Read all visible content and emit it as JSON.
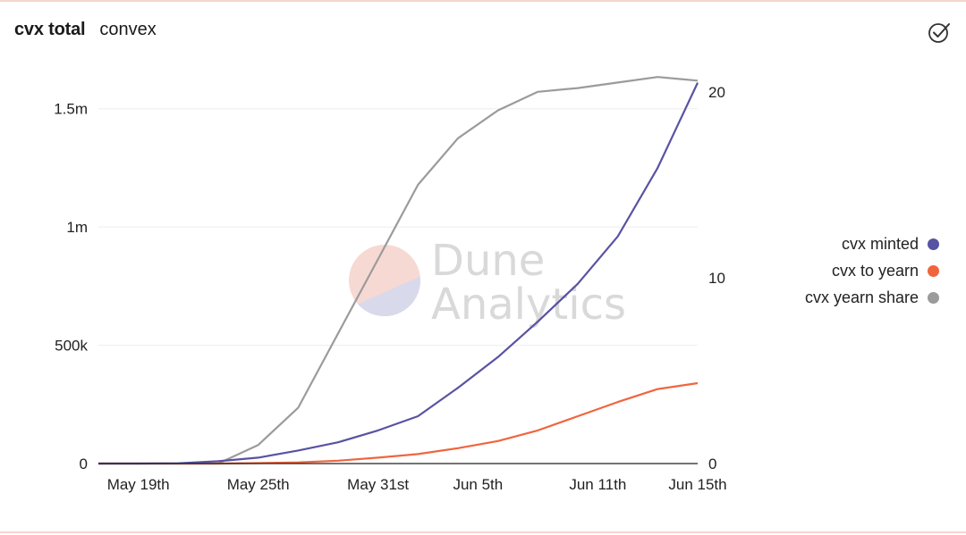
{
  "header": {
    "title": "cvx total",
    "subtitle": "convex"
  },
  "icons": {
    "check": "check-circle-icon"
  },
  "watermark": {
    "line1": "Dune",
    "line2": "Analytics"
  },
  "colors": {
    "minted": "#5853a2",
    "yearn": "#f0653e",
    "share": "#9b9b9b",
    "grid": "#eeeeee"
  },
  "chart_data": {
    "type": "line",
    "x": [
      "May 17",
      "May 19",
      "May 21",
      "May 23",
      "May 25",
      "May 27",
      "May 29",
      "May 31",
      "Jun 2",
      "Jun 4",
      "Jun 6",
      "Jun 8",
      "Jun 10",
      "Jun 12",
      "Jun 14",
      "Jun 15"
    ],
    "x_tick_labels": [
      "May 19th",
      "May 25th",
      "May 31st",
      "Jun 5th",
      "Jun 11th",
      "Jun 15th"
    ],
    "y_left_ticks": [
      {
        "value": 0,
        "label": "0"
      },
      {
        "value": 500000,
        "label": "500k"
      },
      {
        "value": 1000000,
        "label": "1m"
      },
      {
        "value": 1500000,
        "label": "1.5m"
      }
    ],
    "y_right_ticks": [
      {
        "value": 0,
        "label": "0"
      },
      {
        "value": 10,
        "label": "10"
      },
      {
        "value": 20,
        "label": "20"
      }
    ],
    "ylim_left": [
      0,
      1650000
    ],
    "ylim_right": [
      0,
      21
    ],
    "series": [
      {
        "name": "cvx minted",
        "axis": "left",
        "color": "#5853a2",
        "values": [
          0,
          0,
          1000,
          10000,
          25000,
          55000,
          90000,
          140000,
          200000,
          320000,
          450000,
          600000,
          760000,
          960000,
          1250000,
          1610000
        ]
      },
      {
        "name": "cvx to yearn",
        "axis": "left",
        "color": "#f0653e",
        "values": [
          0,
          0,
          0,
          0,
          2000,
          5000,
          12000,
          25000,
          40000,
          65000,
          95000,
          140000,
          200000,
          260000,
          315000,
          340000
        ]
      },
      {
        "name": "cvx yearn share",
        "axis": "right",
        "color": "#9b9b9b",
        "values": [
          0,
          0,
          0,
          0,
          1,
          3,
          7,
          11,
          15,
          17.5,
          19,
          20,
          20.2,
          20.5,
          20.8,
          20.6
        ]
      }
    ],
    "legend_position": "right",
    "grid": true
  }
}
